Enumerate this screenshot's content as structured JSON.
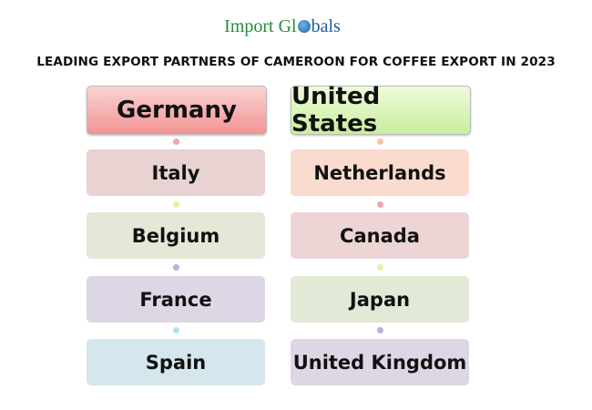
{
  "logo": {
    "text_part1": "Import Gl",
    "text_part2": "bals",
    "globe_icon": "globe-icon"
  },
  "title": "LEADING EXPORT PARTNERS OF CAMEROON FOR COFFEE EXPORT IN 2023",
  "left_column": {
    "header": "Germany",
    "items": [
      "Italy",
      "Belgium",
      "France",
      "Spain"
    ],
    "colors": [
      "#f28f8f",
      "#e8d2d2",
      "#e3e9d6",
      "#ddd6e4",
      "#d5e6ec"
    ]
  },
  "right_column": {
    "header": "United States",
    "items": [
      "Netherlands",
      "Canada",
      "Japan",
      "United Kingdom"
    ],
    "colors": [
      "#c8ee9c",
      "#fadccf",
      "#edd5d5",
      "#e2e9d6",
      "#ddd6e4"
    ]
  }
}
